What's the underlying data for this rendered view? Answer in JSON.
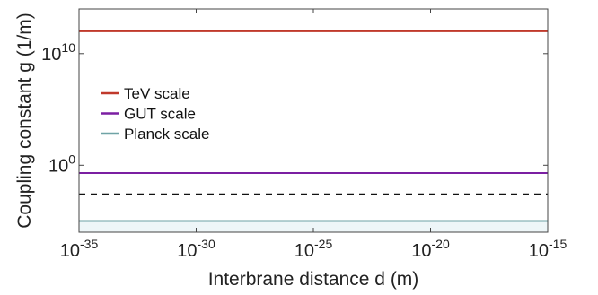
{
  "chart_data": {
    "type": "line",
    "xlabel": "Interbrane distance d (m)",
    "ylabel": "Coupling constant g (1/m)",
    "x_scale": "log",
    "y_scale": "log",
    "xlim": [
      1e-35,
      1e-15
    ],
    "ylim": [
      1e-06,
      100000000000000.0
    ],
    "x_ticks": [
      {
        "base": "10",
        "exp": "-35"
      },
      {
        "base": "10",
        "exp": "-30"
      },
      {
        "base": "10",
        "exp": "-25"
      },
      {
        "base": "10",
        "exp": "-20"
      },
      {
        "base": "10",
        "exp": "-15"
      }
    ],
    "x_tick_values": [
      1e-35,
      1e-30,
      1e-25,
      1e-20,
      1e-15
    ],
    "y_ticks": [
      {
        "base": "10",
        "exp": "0"
      },
      {
        "base": "10",
        "exp": "10"
      }
    ],
    "y_tick_values": [
      1,
      10000000000.0
    ],
    "grid": false,
    "legend_position": "upper-left",
    "series": [
      {
        "name": "TeV scale",
        "color": "#c0392b",
        "x": [
          1e-35,
          1e-15
        ],
        "y": [
          1000000000000.0,
          1000000000000.0
        ]
      },
      {
        "name": "GUT scale",
        "color": "#7b1fa2",
        "x": [
          1e-35,
          1e-15
        ],
        "y": [
          0.2,
          0.2
        ]
      },
      {
        "name": "Planck scale",
        "color": "#6fa3a6",
        "x": [
          1e-35,
          1e-15
        ],
        "y": [
          1e-05,
          1e-05
        ],
        "fill_below": true,
        "fill_color": "#eef6f8"
      }
    ],
    "reference_line": {
      "style": "dashed",
      "color": "#111111",
      "x": [
        1e-35,
        1e-15
      ],
      "y": [
        0.0025,
        0.0025
      ]
    }
  }
}
